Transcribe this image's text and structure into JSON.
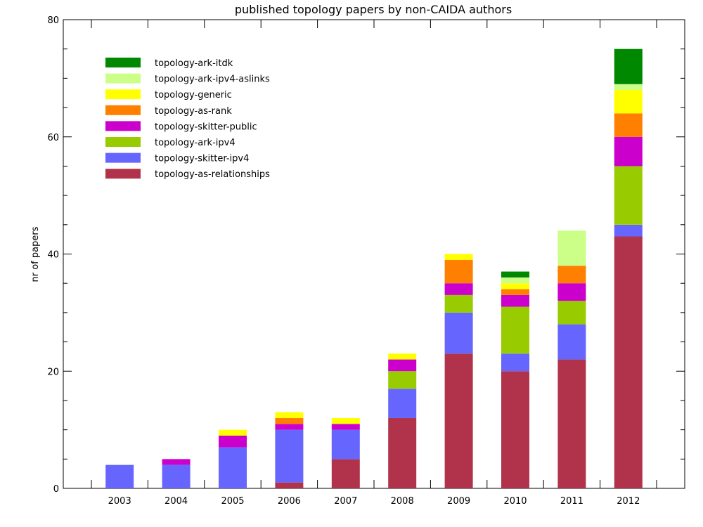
{
  "chart_data": {
    "type": "bar",
    "stacked": true,
    "title": "published topology papers by non-CAIDA authors",
    "ylabel": "nr of papers",
    "xlabel": "",
    "ylim": [
      0,
      80
    ],
    "yticks": [
      "0",
      "20",
      "40",
      "60",
      "80"
    ],
    "xticks": [
      "2003",
      "2004",
      "2005",
      "2006",
      "2007",
      "2008",
      "2009",
      "2010",
      "2011",
      "2012"
    ],
    "categories": [
      "2003",
      "2004",
      "2005",
      "2006",
      "2007",
      "2008",
      "2009",
      "2010",
      "2011",
      "2012"
    ],
    "legend_position": "top-left",
    "grid": false,
    "series": [
      {
        "name": "topology-as-relationships",
        "color": "#b0334b",
        "values": [
          0,
          0,
          0,
          1,
          5,
          12,
          23,
          20,
          22,
          43
        ]
      },
      {
        "name": "topology-skitter-ipv4",
        "color": "#6666ff",
        "values": [
          4,
          4,
          7,
          9,
          5,
          5,
          7,
          3,
          6,
          2
        ]
      },
      {
        "name": "topology-ark-ipv4",
        "color": "#99cc00",
        "values": [
          0,
          0,
          0,
          0,
          0,
          3,
          3,
          8,
          4,
          10
        ]
      },
      {
        "name": "topology-skitter-public",
        "color": "#cc00cc",
        "values": [
          0,
          1,
          2,
          1,
          1,
          2,
          2,
          2,
          3,
          5
        ]
      },
      {
        "name": "topology-as-rank",
        "color": "#ff8000",
        "values": [
          0,
          0,
          0,
          1,
          0,
          0,
          4,
          1,
          3,
          4
        ]
      },
      {
        "name": "topology-generic",
        "color": "#ffff00",
        "values": [
          0,
          0,
          1,
          1,
          1,
          1,
          1,
          1,
          0,
          4
        ]
      },
      {
        "name": "topology-ark-ipv4-aslinks",
        "color": "#ccff88",
        "values": [
          0,
          0,
          0,
          0,
          0,
          0,
          0,
          1,
          6,
          1
        ]
      },
      {
        "name": "topology-ark-itdk",
        "color": "#008800",
        "values": [
          0,
          0,
          0,
          0,
          0,
          0,
          0,
          1,
          0,
          6
        ]
      }
    ],
    "legend_order": [
      "topology-ark-itdk",
      "topology-ark-ipv4-aslinks",
      "topology-generic",
      "topology-as-rank",
      "topology-skitter-public",
      "topology-ark-ipv4",
      "topology-skitter-ipv4",
      "topology-as-relationships"
    ]
  }
}
